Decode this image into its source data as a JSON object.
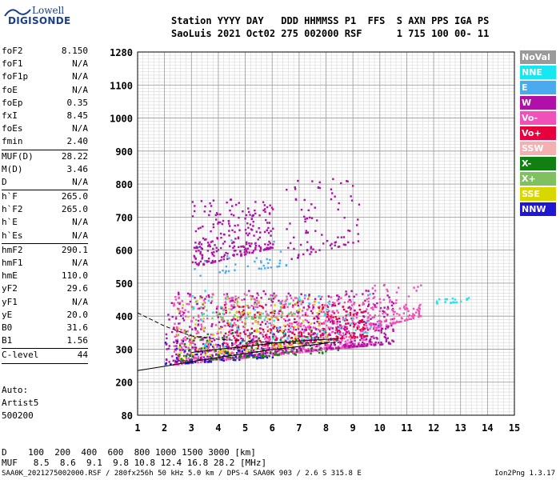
{
  "logo": {
    "line1": "Lowell",
    "line2": "DIGISONDE"
  },
  "header": {
    "line1": "Station YYYY DAY   DDD HHMMSS P1  FFS  S AXN PPS IGA PS",
    "line2": "SaoLuis 2021 Oct02 275 002000 RSF      1 715 100 00- 11"
  },
  "params": [
    {
      "name": "foF2",
      "value": "8.150"
    },
    {
      "name": "foF1",
      "value": "N/A"
    },
    {
      "name": "foF1p",
      "value": "N/A"
    },
    {
      "name": "foE",
      "value": "N/A"
    },
    {
      "name": "foEp",
      "value": "0.35"
    },
    {
      "name": "fxI",
      "value": "8.45"
    },
    {
      "name": "foEs",
      "value": "N/A"
    },
    {
      "name": "fmin",
      "value": "2.40"
    },
    {
      "sep": true
    },
    {
      "name": "MUF(D)",
      "value": "28.22"
    },
    {
      "name": "M(D)",
      "value": "3.46"
    },
    {
      "name": "D",
      "value": "N/A"
    },
    {
      "sep": true
    },
    {
      "name": "h`F",
      "value": "265.0"
    },
    {
      "name": "h`F2",
      "value": "265.0"
    },
    {
      "name": "h`E",
      "value": "N/A"
    },
    {
      "name": "h`Es",
      "value": "N/A"
    },
    {
      "sep": true
    },
    {
      "name": "hmF2",
      "value": "290.1"
    },
    {
      "name": "hmF1",
      "value": "N/A"
    },
    {
      "name": "hmE",
      "value": "110.0"
    },
    {
      "name": "yF2",
      "value": "29.6"
    },
    {
      "name": "yF1",
      "value": "N/A"
    },
    {
      "name": "yE",
      "value": "20.0"
    },
    {
      "name": "B0",
      "value": "31.6"
    },
    {
      "name": "B1",
      "value": "1.56"
    },
    {
      "sep": true
    },
    {
      "name": "C-level",
      "value": "44"
    },
    {
      "sep": true
    }
  ],
  "auto": {
    "line1": "Auto:",
    "line2": "Artist5",
    "line3": "500200"
  },
  "bottom": {
    "d_line": "D    100  200  400  600  800 1000 1500 3000 [km]",
    "muf_line": "MUF   8.5  8.6  9.1  9.8 10.8 12.4 16.8 28.2 [MHz]"
  },
  "footer": "SAA0K_2021275002000.RSF / 280fx256h 50 kHz 5.0 km / DPS-4 SAA0K 903 / 2.6 S 315.8 E",
  "version": "Ion2Png 1.3.17",
  "legend": [
    {
      "label": "NoVal",
      "color": "#9a9a9a"
    },
    {
      "label": "NNE",
      "color": "#18e6f0"
    },
    {
      "label": "E",
      "color": "#4aaaf0"
    },
    {
      "label": "W",
      "color": "#b010a8"
    },
    {
      "label": "Vo-",
      "color": "#f050b8"
    },
    {
      "label": "Vo+",
      "color": "#e8003c"
    },
    {
      "label": "SSW",
      "color": "#f4b0b0"
    },
    {
      "label": "X-",
      "color": "#108010"
    },
    {
      "label": "X+",
      "color": "#80c060"
    },
    {
      "label": "SSE",
      "color": "#d8d800"
    },
    {
      "label": "NNW",
      "color": "#2018d0"
    }
  ],
  "chart_data": {
    "type": "scatter",
    "x_ticks": [
      1,
      2,
      3,
      4,
      5,
      6,
      7,
      8,
      9,
      10,
      11,
      12,
      13,
      14,
      15
    ],
    "y_ticks": [
      80,
      200,
      300,
      400,
      500,
      600,
      700,
      800,
      900,
      1000,
      1100,
      1280
    ],
    "xlim": [
      1,
      15
    ],
    "ylim": [
      80,
      1280
    ],
    "grid": true,
    "regions": [
      {
        "name": "o-trace",
        "color": "#f050b8",
        "x": [
          2.3,
          9.8
        ],
        "y": [
          255,
          470
        ],
        "points": 900
      },
      {
        "name": "o-trace-core",
        "color": "#e8003c",
        "x": [
          4.0,
          9.5
        ],
        "y": [
          300,
          440
        ],
        "points": 250
      },
      {
        "name": "W-echo",
        "color": "#b010a8",
        "x": [
          2.0,
          10.5
        ],
        "y": [
          260,
          480
        ],
        "points": 550
      },
      {
        "name": "NNW-echo",
        "color": "#2018d0",
        "x": [
          2.0,
          6.0
        ],
        "y": [
          255,
          330
        ],
        "points": 90
      },
      {
        "name": "SSE-echo",
        "color": "#d8d800",
        "x": [
          2.3,
          8.0
        ],
        "y": [
          270,
          460
        ],
        "points": 140
      },
      {
        "name": "X-echo",
        "color": "#108010",
        "x": [
          2.5,
          8.5
        ],
        "y": [
          265,
          360
        ],
        "points": 110
      },
      {
        "name": "X+echo",
        "color": "#80c060",
        "x": [
          3.0,
          7.0
        ],
        "y": [
          380,
          470
        ],
        "points": 60
      },
      {
        "name": "NNE-echo",
        "color": "#18e6f0",
        "x": [
          3.0,
          10.0
        ],
        "y": [
          300,
          480
        ],
        "points": 70
      },
      {
        "name": "E-echo",
        "color": "#4aaaf0",
        "x": [
          3.0,
          6.5
        ],
        "y": [
          520,
          640
        ],
        "points": 40
      },
      {
        "name": "spread-F-upper",
        "color": "#b010a8",
        "x": [
          3.0,
          6.0
        ],
        "y": [
          550,
          760
        ],
        "points": 260
      },
      {
        "name": "spread-F-mid",
        "color": "#b010a8",
        "x": [
          6.5,
          9.2
        ],
        "y": [
          570,
          820
        ],
        "points": 90
      },
      {
        "name": "tail",
        "color": "#f050b8",
        "x": [
          9.5,
          11.5
        ],
        "y": [
          360,
          500
        ],
        "points": 120
      },
      {
        "name": "far-echo",
        "color": "#18e6f0",
        "x": [
          12.0,
          13.3
        ],
        "y": [
          440,
          460
        ],
        "points": 18
      }
    ],
    "o_trace_curve": {
      "x": [
        1.0,
        2.0,
        3.0,
        4.0,
        5.0,
        6.0,
        7.0,
        8.0,
        8.15
      ],
      "y": [
        235,
        248,
        262,
        275,
        287,
        298,
        308,
        318,
        322
      ]
    },
    "x_trace_curve": {
      "x": [
        3.0,
        4.0,
        5.0,
        6.0,
        7.0,
        8.0,
        8.45
      ],
      "y": [
        290,
        300,
        308,
        318,
        325,
        330,
        332
      ]
    },
    "dashed_curve": {
      "x": [
        1.0,
        2.0,
        3.0,
        4.0,
        5.0,
        6.0,
        7.0,
        8.0,
        8.5
      ],
      "y": [
        410,
        370,
        340,
        330,
        325,
        320,
        318,
        320,
        320
      ]
    }
  }
}
